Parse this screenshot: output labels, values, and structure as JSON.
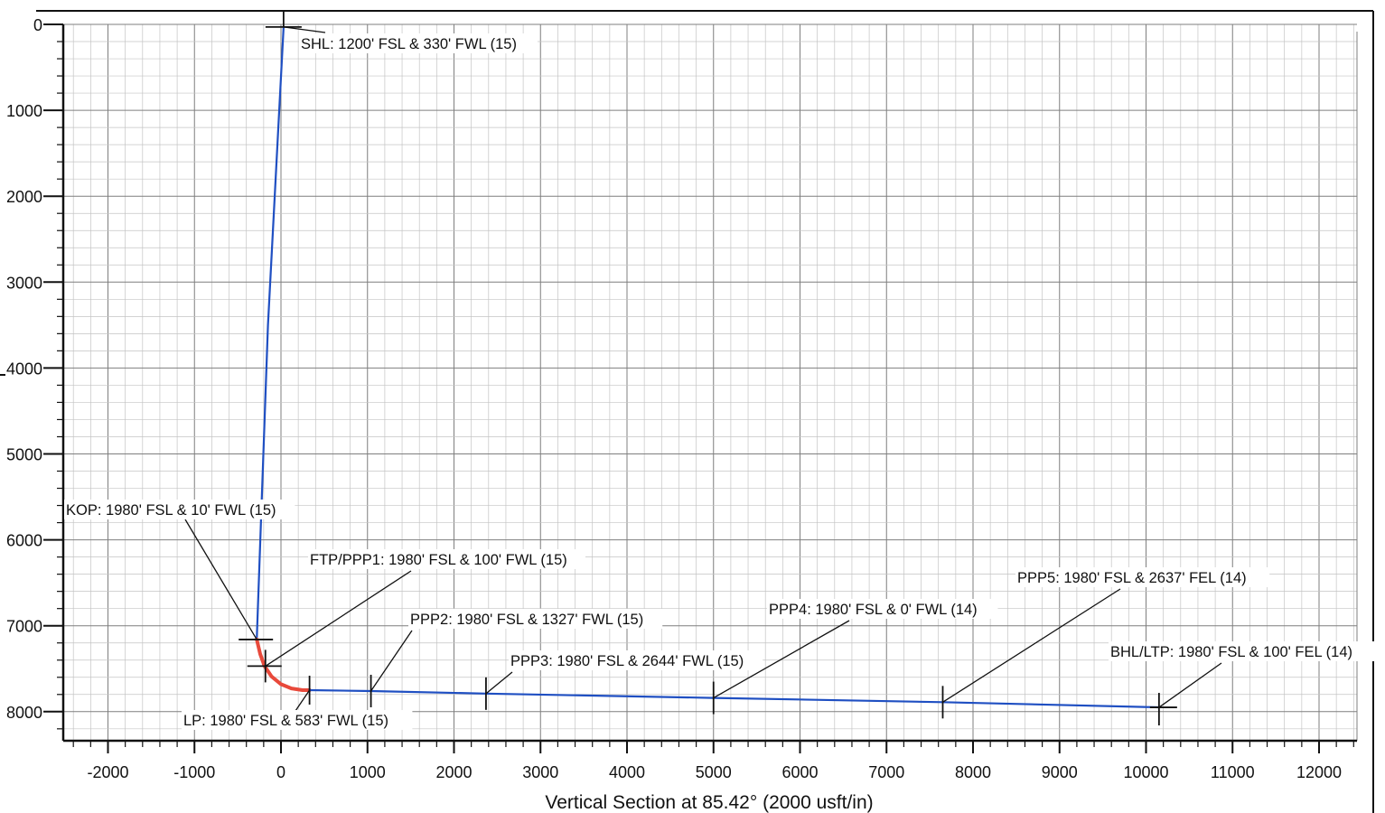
{
  "chart_data": {
    "type": "line",
    "title": "",
    "xlabel": "Vertical Section at 85.42° (2000 usft/in)",
    "ylabel": "",
    "xlim": [
      -2500,
      12400
    ],
    "ylim": [
      0,
      8400
    ],
    "y_inverted": true,
    "grid": true,
    "x_ticks": [
      -2000,
      -1000,
      0,
      1000,
      2000,
      3000,
      4000,
      5000,
      6000,
      7000,
      8000,
      9000,
      10000,
      11000,
      12000
    ],
    "y_ticks": [
      0,
      1000,
      2000,
      3000,
      4000,
      5000,
      6000,
      7000,
      8000
    ],
    "colors": {
      "vertical_and_lateral": "#1f4fc2",
      "curve": "#e8493b",
      "grid_major": "#7f7f7f",
      "grid_minor": "#c4c4c4"
    },
    "series": [
      {
        "x": [
          30,
          -150,
          -280
        ],
        "y": [
          30,
          3500,
          7160
        ]
      },
      {
        "x": [
          -280,
          -240,
          -190,
          -110,
          0,
          120,
          250,
          330
        ],
        "y": [
          7160,
          7330,
          7470,
          7590,
          7680,
          7730,
          7750,
          7750
        ]
      },
      {
        "x": [
          330,
          1040,
          2370,
          5000,
          7650,
          10150
        ],
        "y": [
          7750,
          7760,
          7790,
          7840,
          7890,
          7950
        ]
      }
    ],
    "annotations": [
      {
        "text": "SHL: 1200' FSL & 330' FWL (15)",
        "x": 30,
        "y": 30
      },
      {
        "text": "KOP: 1980' FSL & 10' FWL (15)",
        "x": -280,
        "y": 7160
      },
      {
        "text": "FTP/PPP1: 1980' FSL & 100' FWL (15)",
        "x": -180,
        "y": 7470
      },
      {
        "text": "PPP2: 1980' FSL & 1327' FWL (15)",
        "x": 1040,
        "y": 7760
      },
      {
        "text": "PPP3: 1980' FSL & 2644' FWL (15)",
        "x": 2370,
        "y": 7790
      },
      {
        "text": "PPP4: 1980' FSL & 0' FWL (14)",
        "x": 5000,
        "y": 7840
      },
      {
        "text": "PPP5: 1980' FSL & 2637' FEL (14)",
        "x": 7650,
        "y": 7890
      },
      {
        "text": "BHL/LTP: 1980' FSL & 100' FEL (14)",
        "x": 10150,
        "y": 7950
      },
      {
        "text": "LP: 1980' FSL & 583' FWL (15)",
        "x": 330,
        "y": 7750
      }
    ]
  }
}
